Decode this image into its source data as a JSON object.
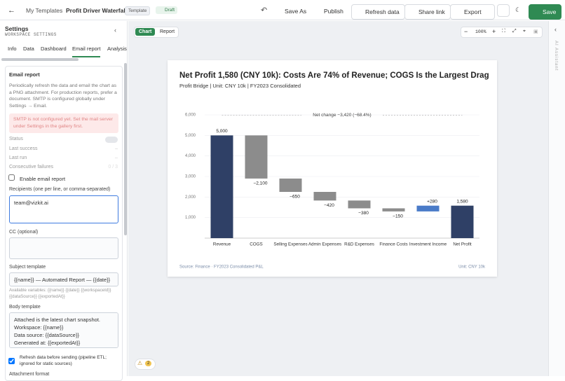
{
  "topbar": {
    "breadcrumb": "My Templates",
    "title": "Profit Driver Waterfall",
    "badges": [
      "Template",
      "Draft"
    ],
    "actions": [
      "Save As",
      "Publish",
      "Refresh data",
      "Share link",
      "Export",
      "Save"
    ]
  },
  "sidebar": {
    "title": "Settings",
    "subtitle": "WORKSPACE SETTINGS",
    "tabs": [
      "Info",
      "Data",
      "Dashboard",
      "Email report",
      "Analysis"
    ]
  },
  "email_report": {
    "heading": "Email report",
    "description": "Periodically refresh the data and email the chart as a PNG attachment. For production reports, prefer a document. SMTP is configured globally under Settings → Email.",
    "warning": "SMTP is not configured yet. Set the mail server under Settings in the gallery first.",
    "status_label": "Status",
    "status_rows": [
      [
        "Last success",
        "–"
      ],
      [
        "Last run",
        "–"
      ],
      [
        "Consecutive failures",
        "0 / 3"
      ]
    ],
    "enable_label": "Enable email report",
    "recipients_label": "Recipients (one per line, or comma-separated)",
    "recipients_value": "team@vizkit.ai",
    "cc_label": "CC (optional)",
    "subject_label": "Subject template",
    "subject_value": "{{name}} — Automated Report — {{date}}",
    "variables_hint": "Available variables: {{name}} {{date}} {{workspaceId}} {{dataSource}} {{exportedAt}}",
    "body_label": "Body template",
    "body_value": "Attached is the latest chart snapshot.\nWorkspace: {{name}}\nData source: {{dataSource}}\nGenerated at: {{exportedAt}}",
    "refresh_label": "Refresh data before sending (pipeline ETL; ignored for static sources)",
    "attachment_label": "Attachment format"
  },
  "canvas": {
    "view_tabs": [
      "Chart",
      "Report"
    ],
    "zoom": "100%",
    "issues_badge": "2",
    "assistant": "AI Assistant"
  },
  "chart_data": {
    "type": "waterfall",
    "title": "Net Profit 1,580 (CNY 10k): Costs Are 74% of Revenue; COGS Is the Largest Drag",
    "subtitle": "Profit Bridge | Unit: CNY 10k | FY2023 Consolidated",
    "annotation": "Net change −3,420 (−68.4%)",
    "categories": [
      "Revenue",
      "COGS",
      "Selling Expenses",
      "Admin Expenses",
      "R&D Expenses",
      "Finance Costs",
      "Investment Income",
      "Net Profit"
    ],
    "values": [
      5000,
      -2100,
      -650,
      -420,
      -380,
      -150,
      280,
      1580
    ],
    "value_labels": [
      "5,000",
      "−2,100",
      "−650",
      "−420",
      "−380",
      "−150",
      "+280",
      "1,580"
    ],
    "measures": [
      "total",
      "relative",
      "relative",
      "relative",
      "relative",
      "relative",
      "relative",
      "total"
    ],
    "colors": {
      "total": "#2f4066",
      "decrease": "#8c8c8c",
      "increase": "#4a7bc8"
    },
    "ylim": [
      0,
      6000
    ],
    "yticks": [
      {
        "value": 1000,
        "label": "1,000"
      },
      {
        "value": 2000,
        "label": "2,000"
      },
      {
        "value": 3000,
        "label": "3,000"
      },
      {
        "value": 4000,
        "label": "4,000"
      },
      {
        "value": 5000,
        "label": "5,000"
      },
      {
        "value": 6000,
        "label": "6,000"
      }
    ],
    "grid": true,
    "source": "Source: Finance · FY2023 Consolidated P&L",
    "unit_note": "Unit: CNY 10k"
  }
}
